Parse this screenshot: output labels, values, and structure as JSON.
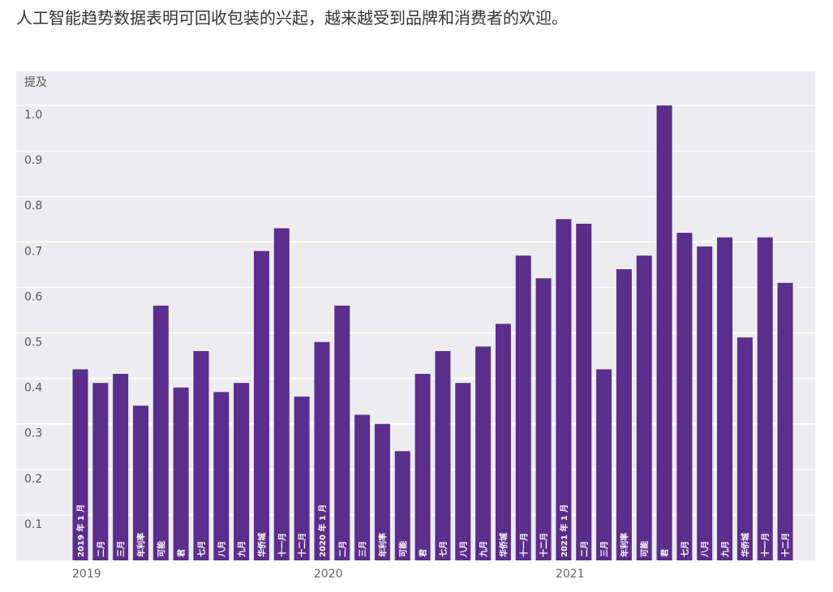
{
  "title": "人工智能趋势数据表明可回收包装的兴起，越来越受到品牌和消费者的欢迎。",
  "chart_data": {
    "type": "bar",
    "title": "人工智能趋势数据表明可回收包装的兴起，越来越受到品牌和消费者的欢迎。",
    "ylabel": "提及",
    "xlabel": "",
    "ylim": [
      0,
      1.0
    ],
    "yticks": [
      "0.1",
      "0.2",
      "0.3",
      "0.4",
      "0.5",
      "0.6",
      "0.7",
      "0.8",
      "0.9",
      "1.0"
    ],
    "year_labels": [
      {
        "label": "2019",
        "index": 0
      },
      {
        "label": "2020",
        "index": 12
      },
      {
        "label": "2021",
        "index": 24
      }
    ],
    "grid": true,
    "bar_color": "#5b2d8c",
    "categories": [
      "2019 年 1 月",
      "二月",
      "三月",
      "年利率",
      "可能",
      "君",
      "七月",
      "八月",
      "九月",
      "华侨城",
      "十一月",
      "十二月",
      "2020 年 1 月",
      "二月",
      "三月",
      "年利率",
      "可能",
      "君",
      "七月",
      "八月",
      "九月",
      "华侨城",
      "十一月",
      "十二月",
      "2021 年 1 月",
      "二月",
      "三月",
      "年利率",
      "可能",
      "君",
      "七月",
      "八月",
      "九月",
      "华侨城",
      "十一月",
      "十二月"
    ],
    "values": [
      0.42,
      0.39,
      0.41,
      0.34,
      0.56,
      0.38,
      0.46,
      0.37,
      0.39,
      0.68,
      0.73,
      0.36,
      0.48,
      0.56,
      0.32,
      0.3,
      0.24,
      0.41,
      0.46,
      0.39,
      0.47,
      0.52,
      0.67,
      0.62,
      0.75,
      0.74,
      0.42,
      0.64,
      0.67,
      1.0,
      0.72,
      0.69,
      0.71,
      0.49,
      0.71,
      0.61
    ]
  }
}
